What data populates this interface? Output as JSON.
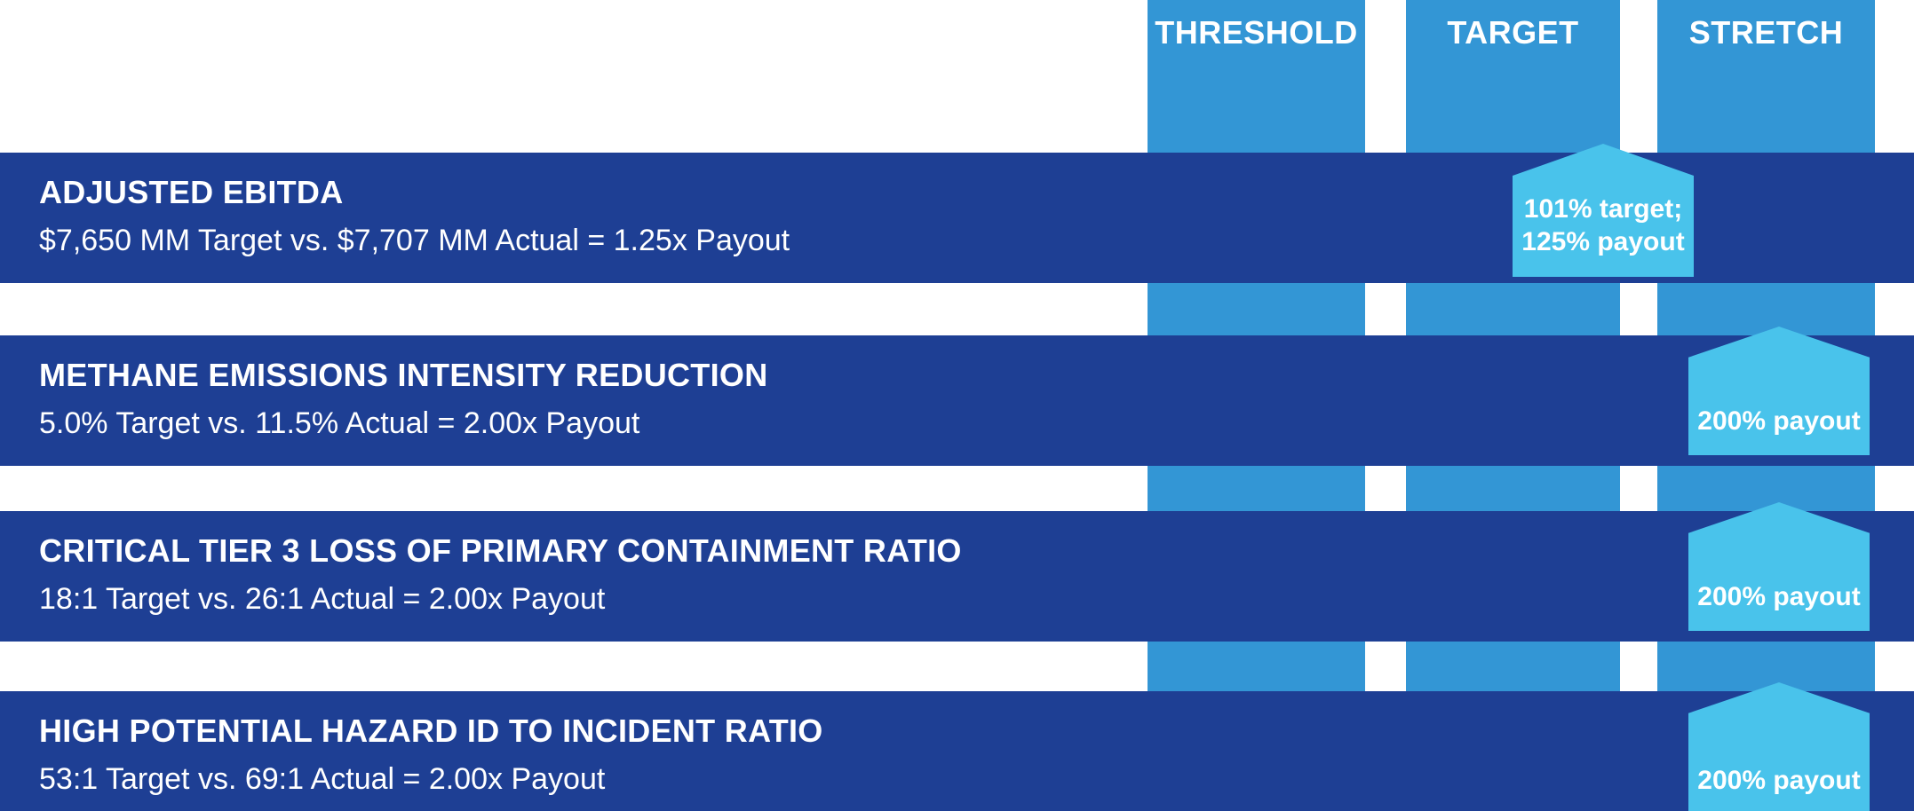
{
  "chart_data": {
    "type": "table",
    "columns": [
      "THRESHOLD",
      "TARGET",
      "STRETCH"
    ],
    "rows": [
      {
        "metric": "ADJUSTED EBITDA",
        "detail": "$7,650 MM Target vs. $7,707 MM Actual = 1.25x Payout",
        "target_value": "$7,650 MM",
        "actual_value": "$7,707 MM",
        "payout_multiple": "1.25x",
        "marker_lines": [
          "101% target;",
          "125% payout"
        ],
        "marker_position": "just past target"
      },
      {
        "metric": "METHANE EMISSIONS INTENSITY REDUCTION",
        "detail": "5.0% Target vs. 11.5% Actual = 2.00x Payout",
        "target_value": "5.0%",
        "actual_value": "11.5%",
        "payout_multiple": "2.00x",
        "marker_lines": [
          "200% payout"
        ],
        "marker_position": "stretch"
      },
      {
        "metric": "CRITICAL TIER 3 LOSS OF PRIMARY CONTAINMENT RATIO",
        "detail": "18:1 Target vs. 26:1 Actual = 2.00x Payout",
        "target_value": "18:1",
        "actual_value": "26:1",
        "payout_multiple": "2.00x",
        "marker_lines": [
          "200% payout"
        ],
        "marker_position": "stretch"
      },
      {
        "metric": "HIGH POTENTIAL HAZARD ID TO INCIDENT RATIO",
        "detail": "53:1 Target vs. 69:1 Actual = 2.00x Payout",
        "target_value": "53:1",
        "actual_value": "69:1",
        "payout_multiple": "2.00x",
        "marker_lines": [
          "200% payout"
        ],
        "marker_position": "stretch"
      }
    ],
    "colors": {
      "row_navy": "#1e3f94",
      "column_blue": "#3396d5",
      "marker_light_blue": "#49c3eb",
      "text": "#ffffff"
    },
    "legend_position": "none",
    "grid": false
  }
}
